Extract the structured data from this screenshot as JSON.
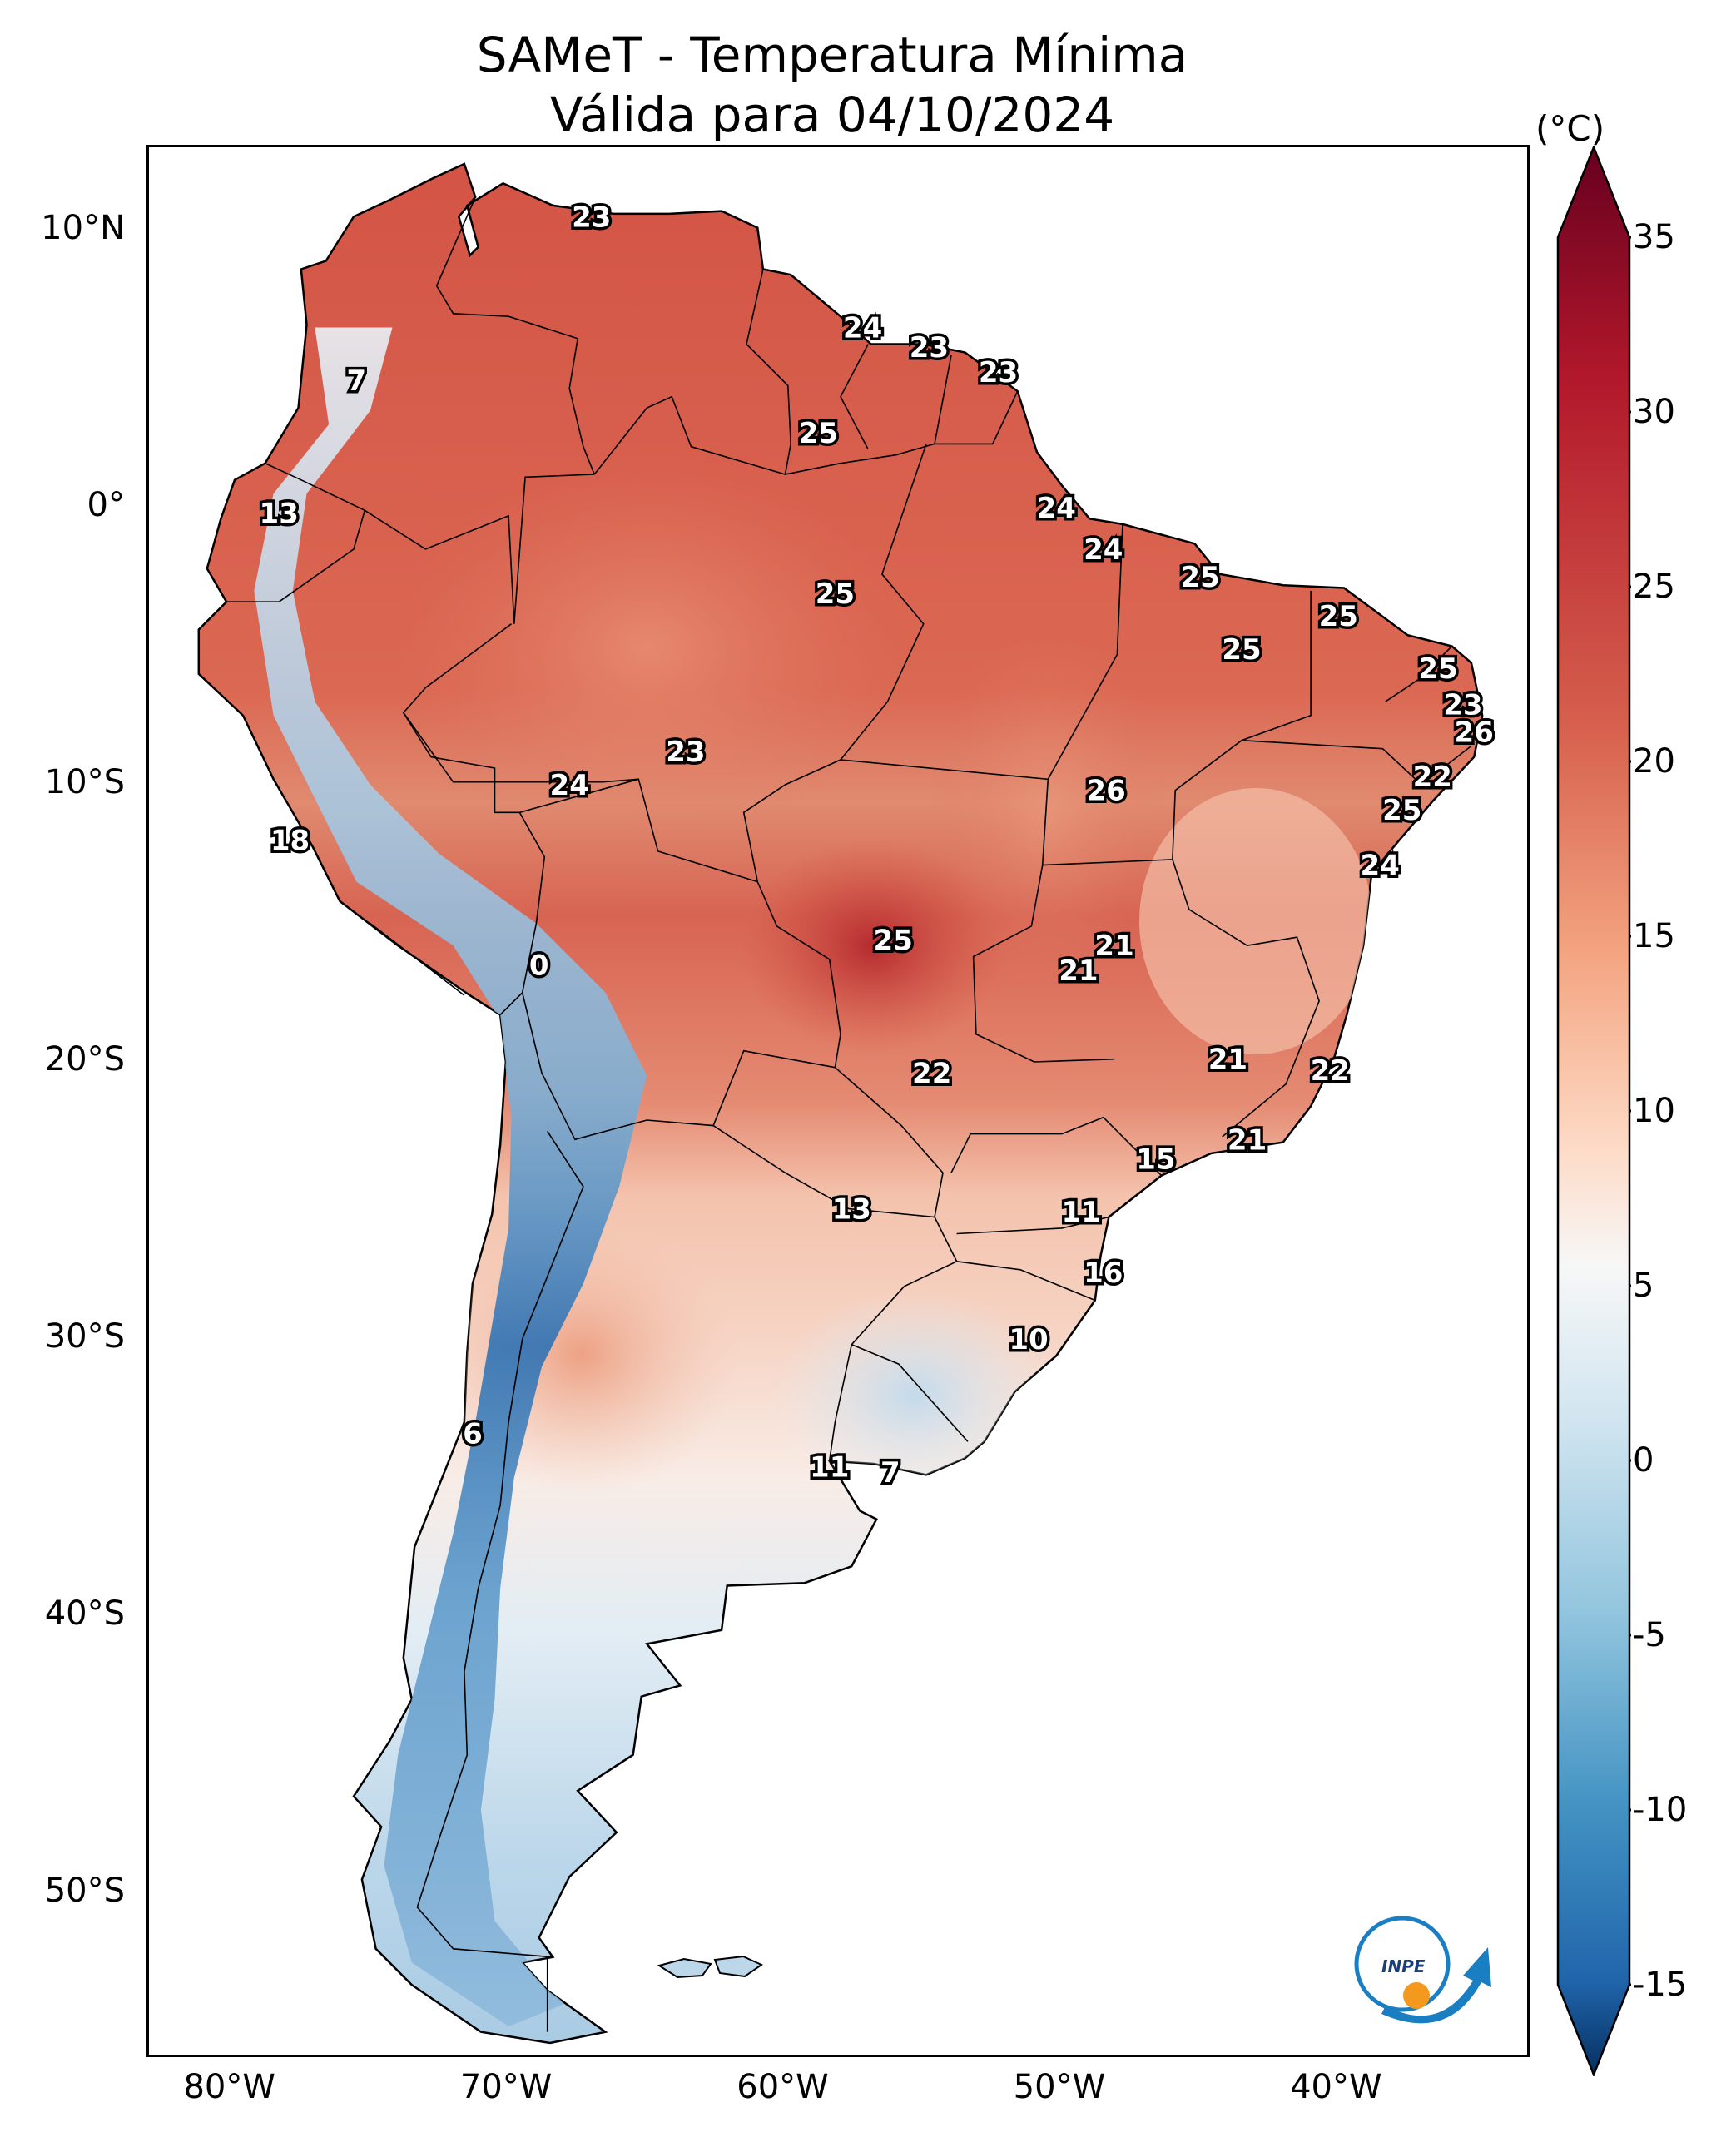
{
  "title": {
    "line1": "SAMeT - Temperatura Mínima",
    "line2": "Válida para 04/10/2024"
  },
  "axes": {
    "lat_ticks": [
      "10°N",
      "0°",
      "10°S",
      "20°S",
      "30°S",
      "40°S",
      "50°S"
    ],
    "lon_ticks": [
      "80°W",
      "70°W",
      "60°W",
      "50°W",
      "40°W"
    ]
  },
  "colorbar": {
    "unit": "(°C)",
    "ticks": [
      "35",
      "30",
      "25",
      "20",
      "15",
      "10",
      "5",
      "0",
      "-5",
      "-10",
      "-15"
    ]
  },
  "logo_text": "INPE",
  "chart_data": {
    "type": "map",
    "extent_lon": [
      -83,
      -33
    ],
    "extent_lat": [
      -56,
      13
    ],
    "colorbar_range": [
      -15,
      35
    ],
    "points": [
      {
        "label": "23",
        "lon": -67,
        "lat": 10.5
      },
      {
        "label": "24",
        "lon": -57.2,
        "lat": 6.5
      },
      {
        "label": "23",
        "lon": -54.8,
        "lat": 5.8
      },
      {
        "label": "23",
        "lon": -52.3,
        "lat": 4.9
      },
      {
        "label": "7",
        "lon": -75.5,
        "lat": 4.6
      },
      {
        "label": "25",
        "lon": -58.8,
        "lat": 2.7
      },
      {
        "label": "24",
        "lon": -50.2,
        "lat": 0.0
      },
      {
        "label": "13",
        "lon": -78.3,
        "lat": -0.2
      },
      {
        "label": "24",
        "lon": -48.5,
        "lat": -1.5
      },
      {
        "label": "25",
        "lon": -45,
        "lat": -2.5
      },
      {
        "label": "25",
        "lon": -58.2,
        "lat": -3.1
      },
      {
        "label": "25",
        "lon": -40,
        "lat": -3.9
      },
      {
        "label": "25",
        "lon": -43.5,
        "lat": -5.1
      },
      {
        "label": "25",
        "lon": -36.4,
        "lat": -5.8
      },
      {
        "label": "23",
        "lon": -35.5,
        "lat": -7.1
      },
      {
        "label": "26",
        "lon": -35.1,
        "lat": -8.1
      },
      {
        "label": "23",
        "lon": -63.6,
        "lat": -8.8
      },
      {
        "label": "22",
        "lon": -36.6,
        "lat": -9.7
      },
      {
        "label": "24",
        "lon": -67.8,
        "lat": -10.0
      },
      {
        "label": "26",
        "lon": -48.4,
        "lat": -10.2
      },
      {
        "label": "25",
        "lon": -37.7,
        "lat": -10.9
      },
      {
        "label": "18",
        "lon": -77.9,
        "lat": -12.0
      },
      {
        "label": "24",
        "lon": -38.5,
        "lat": -12.9
      },
      {
        "label": "21",
        "lon": -48.1,
        "lat": -15.8
      },
      {
        "label": "25",
        "lon": -56.1,
        "lat": -15.6
      },
      {
        "label": "21",
        "lon": -49.4,
        "lat": -16.7
      },
      {
        "label": "0",
        "lon": -68.9,
        "lat": -16.5
      },
      {
        "label": "21",
        "lon": -44.0,
        "lat": -19.9
      },
      {
        "label": "22",
        "lon": -54.7,
        "lat": -20.4
      },
      {
        "label": "22",
        "lon": -40.3,
        "lat": -20.3
      },
      {
        "label": "21",
        "lon": -43.3,
        "lat": -22.8
      },
      {
        "label": "15",
        "lon": -46.6,
        "lat": -23.5
      },
      {
        "label": "13",
        "lon": -57.6,
        "lat": -25.3
      },
      {
        "label": "11",
        "lon": -49.3,
        "lat": -25.4
      },
      {
        "label": "16",
        "lon": -48.5,
        "lat": -27.6
      },
      {
        "label": "10",
        "lon": -51.2,
        "lat": -30.0
      },
      {
        "label": "6",
        "lon": -71.3,
        "lat": -33.4
      },
      {
        "label": "11",
        "lon": -58.4,
        "lat": -34.6
      },
      {
        "label": "7",
        "lon": -56.2,
        "lat": -34.8
      }
    ]
  }
}
